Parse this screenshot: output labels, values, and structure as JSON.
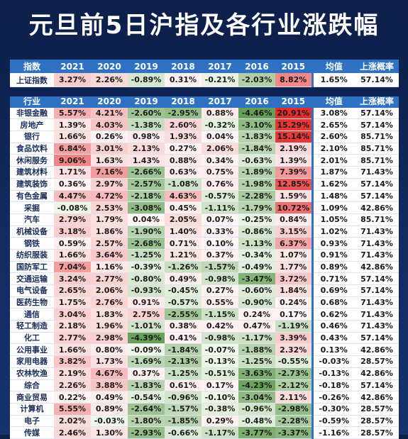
{
  "title": "元旦前5日沪指及各行业涨跌幅",
  "index_table": {
    "header": [
      "指数",
      "2021",
      "2020",
      "2019",
      "2018",
      "2017",
      "2016",
      "2015",
      "均值",
      "上涨概率"
    ],
    "rows": [
      [
        "上证指数",
        "3.27%",
        "2.26%",
        "-0.89%",
        "0.31%",
        "-0.21%",
        "-2.03%",
        "8.82%",
        "1.65%",
        "57.14%"
      ]
    ]
  },
  "industry_table": {
    "header": [
      "行业",
      "2021",
      "2020",
      "2019",
      "2018",
      "2017",
      "2016",
      "2015",
      "均值",
      "上涨概率"
    ],
    "rows": [
      [
        "非银金融",
        "5.57%",
        "4.21%",
        "-2.60%",
        "-2.95%",
        "0.88%",
        "-4.46%",
        "20.91%",
        "3.08%",
        "57.14%"
      ],
      [
        "房地产",
        "1.39%",
        "4.03%",
        "-1.38%",
        "2.60%",
        "-0.32%",
        "-3.10%",
        "15.29%",
        "2.65%",
        "57.14%"
      ],
      [
        "银行",
        "1.66%",
        "0.26%",
        "0.98%",
        "1.93%",
        "0.04%",
        "-1.83%",
        "15.14%",
        "2.60%",
        "85.71%"
      ],
      [
        "食品饮料",
        "6.84%",
        "3.01%",
        "2.13%",
        "0.27%",
        "2.06%",
        "-1.84%",
        "2.19%",
        "2.10%",
        "85.71%"
      ],
      [
        "休闲服务",
        "9.06%",
        "1.63%",
        "1.43%",
        "0.88%",
        "0.34%",
        "-0.63%",
        "1.39%",
        "2.01%",
        "85.71%"
      ],
      [
        "建筑材料",
        "1.71%",
        "7.16%",
        "-2.66%",
        "0.63%",
        "0.75%",
        "-1.89%",
        "7.39%",
        "1.87%",
        "71.43%"
      ],
      [
        "建筑装饰",
        "0.36%",
        "2.97%",
        "-2.57%",
        "-1.08%",
        "0.76%",
        "-1.98%",
        "12.85%",
        "1.62%",
        "57.14%"
      ],
      [
        "有色金属",
        "4.47%",
        "4.72%",
        "-2.18%",
        "4.63%",
        "-0.57%",
        "-2.28%",
        "1.59%",
        "1.48%",
        "57.14%"
      ],
      [
        "采掘",
        "-0.08%",
        "2.53%",
        "-3.08%",
        "0.45%",
        "-1.11%",
        "-1.79%",
        "10.72%",
        "1.09%",
        "42.86%"
      ],
      [
        "汽车",
        "2.79%",
        "1.79%",
        "0.04%",
        "2.05%",
        "0.07%",
        "-0.25%",
        "0.84%",
        "1.05%",
        "85.71%"
      ],
      [
        "机械设备",
        "3.18%",
        "1.86%",
        "-1.90%",
        "1.40%",
        "0.33%",
        "-0.86%",
        "3.15%",
        "1.02%",
        "71.43%"
      ],
      [
        "钢铁",
        "0.59%",
        "2.57%",
        "-2.68%",
        "0.71%",
        "0.10%",
        "-1.13%",
        "6.37%",
        "0.93%",
        "71.43%"
      ],
      [
        "纺织服装",
        "1.66%",
        "3.64%",
        "-1.25%",
        "1.21%",
        "0.37%",
        "-0.34%",
        "1.07%",
        "0.91%",
        "71.43%"
      ],
      [
        "国防军工",
        "7.04%",
        "1.16%",
        "-0.39%",
        "-1.26%",
        "-1.57%",
        "-0.49%",
        "1.77%",
        "0.89%",
        "42.86%"
      ],
      [
        "交通运输",
        "3.24%",
        "2.77%",
        "-0.80%",
        "0.49%",
        "-0.98%",
        "-3.47%",
        "3.72%",
        "0.71%",
        "57.14%"
      ],
      [
        "电气设备",
        "2.65%",
        "2.06%",
        "-0.93%",
        "-0.45%",
        "0.27%",
        "-0.60%",
        "1.84%",
        "0.69%",
        "57.14%"
      ],
      [
        "医药生物",
        "1.75%",
        "2.76%",
        "0.91%",
        "-0.57%",
        "0.55%",
        "-0.90%",
        "0.24%",
        "0.68%",
        "71.43%"
      ],
      [
        "通信",
        "3.04%",
        "1.83%",
        "2.75%",
        "-2.55%",
        "-1.15%",
        "0.24%",
        "0.17%",
        "0.62%",
        "71.43%"
      ],
      [
        "轻工制造",
        "2.18%",
        "1.96%",
        "-1.01%",
        "0.38%",
        "0.42%",
        "0.47%",
        "-1.19%",
        "0.46%",
        "71.43%"
      ],
      [
        "化工",
        "2.77%",
        "2.98%",
        "-4.39%",
        "0.41%",
        "-0.98%",
        "-1.17%",
        "3.39%",
        "0.43%",
        "57.14%"
      ],
      [
        "公用事业",
        "1.66%",
        "0.80%",
        "-0.09%",
        "-1.84%",
        "-0.07%",
        "-1.88%",
        "2.32%",
        "0.13%",
        "42.86%"
      ],
      [
        "家用电器",
        "3.82%",
        "1.73%",
        "-1.69%",
        "-2.13%",
        "-0.13%",
        "-1.25%",
        "-0.55%",
        "-0.03%",
        "28.57%"
      ],
      [
        "农林牧渔",
        "2.19%",
        "4.67%",
        "0.37%",
        "-1.25%",
        "-0.51%",
        "-3.63%",
        "-2.73%",
        "-0.13%",
        "42.86%"
      ],
      [
        "综合",
        "2.26%",
        "3.88%",
        "-1.83%",
        "0.61%",
        "0.17%",
        "-4.23%",
        "-2.12%",
        "-0.18%",
        "57.14%"
      ],
      [
        "商业贸易",
        "0.22%",
        "0.49%",
        "-0.54%",
        "-0.96%",
        "-0.10%",
        "-3.04%",
        "2.11%",
        "-0.26%",
        "42.86%"
      ],
      [
        "计算机",
        "5.55%",
        "0.89%",
        "-2.64%",
        "-1.57%",
        "-0.38%",
        "-0.96%",
        "-2.98%",
        "-0.30%",
        "28.57%"
      ],
      [
        "电子",
        "2.02%",
        "-0.03%",
        "-1.80%",
        "-1.85%",
        "0.29%",
        "-0.48%",
        "-2.28%",
        "-0.59%",
        "28.57%"
      ],
      [
        "传媒",
        "2.46%",
        "1.30%",
        "-2.93%",
        "-0.66%",
        "-1.17%",
        "-3.77%",
        "-3.37%",
        "-1.16%",
        "28.57%"
      ]
    ]
  }
}
